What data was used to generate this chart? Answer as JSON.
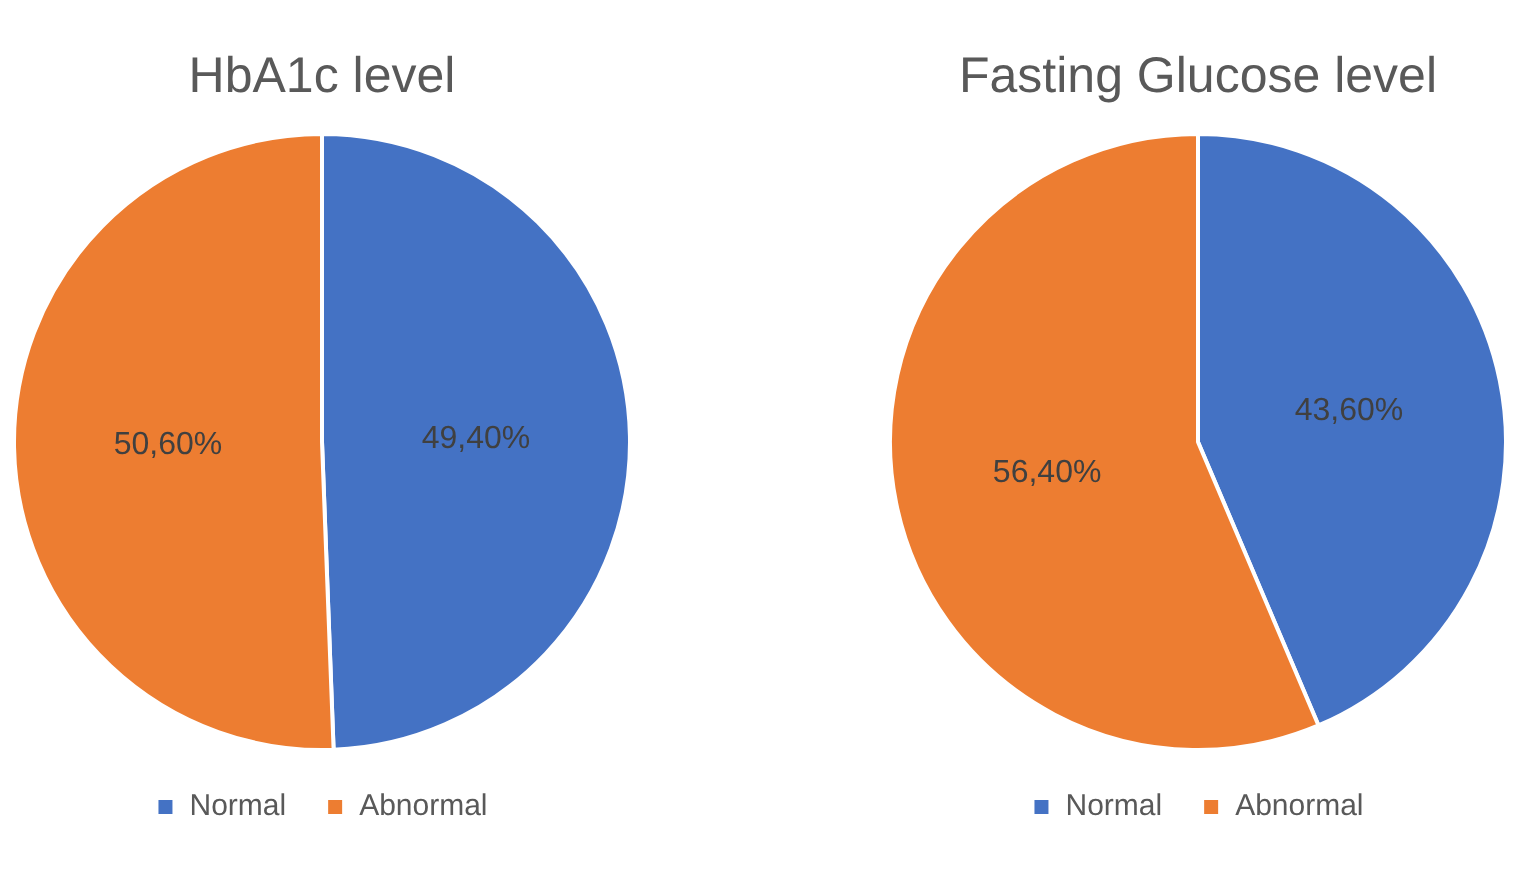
{
  "chart_data": [
    {
      "type": "pie",
      "title": "HbA1c level",
      "categories": [
        "Normal",
        "Abnormal"
      ],
      "values": [
        49.4,
        50.6
      ],
      "colors": [
        "#4472c4",
        "#ed7d31"
      ],
      "value_labels": [
        "49,40%",
        "50,60%"
      ],
      "legend": "bottom"
    },
    {
      "type": "pie",
      "title": "Fasting Glucose level",
      "categories": [
        "Normal",
        "Abnormal"
      ],
      "values": [
        43.6,
        56.4
      ],
      "colors": [
        "#4472c4",
        "#ed7d31"
      ],
      "value_labels": [
        "43,60%",
        "56,40%"
      ],
      "legend": "bottom"
    }
  ]
}
